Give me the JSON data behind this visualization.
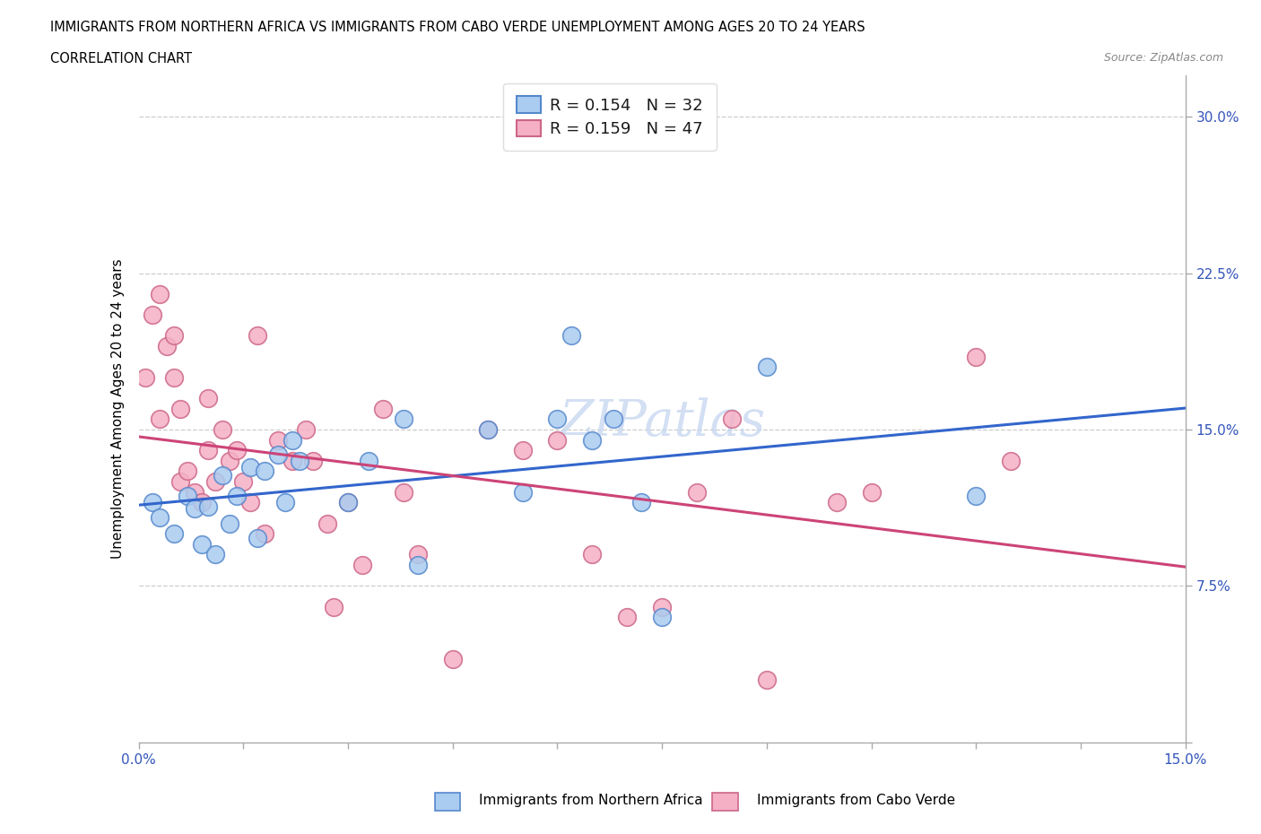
{
  "title_line1": "IMMIGRANTS FROM NORTHERN AFRICA VS IMMIGRANTS FROM CABO VERDE UNEMPLOYMENT AMONG AGES 20 TO 24 YEARS",
  "title_line2": "CORRELATION CHART",
  "source_text": "Source: ZipAtlas.com",
  "ylabel": "Unemployment Among Ages 20 to 24 years",
  "xlim": [
    0.0,
    0.15
  ],
  "ylim": [
    0.0,
    0.32
  ],
  "xticks": [
    0.0,
    0.015,
    0.03,
    0.045,
    0.06,
    0.075,
    0.09,
    0.105,
    0.12,
    0.135,
    0.15
  ],
  "xtick_labels": [
    "0.0%",
    "",
    "",
    "",
    "",
    "",
    "",
    "",
    "",
    "",
    "15.0%"
  ],
  "yticks": [
    0.0,
    0.075,
    0.15,
    0.225,
    0.3
  ],
  "ytick_labels": [
    "",
    "7.5%",
    "15.0%",
    "22.5%",
    "30.0%"
  ],
  "hlines": [
    0.075,
    0.15,
    0.225,
    0.3
  ],
  "color_blue": "#aaccf0",
  "color_pink": "#f5b0c5",
  "edge_blue": "#5588cc",
  "edge_pink": "#cc6688",
  "line_blue": "#3366cc",
  "line_pink": "#cc4477",
  "R_blue": "0.154",
  "N_blue": "32",
  "R_pink": "0.159",
  "N_pink": "47",
  "legend_label_blue": "Immigrants from Northern Africa",
  "legend_label_pink": "Immigrants from Cabo Verde",
  "scatter_blue_x": [
    0.002,
    0.003,
    0.005,
    0.007,
    0.008,
    0.009,
    0.01,
    0.011,
    0.012,
    0.013,
    0.014,
    0.016,
    0.017,
    0.018,
    0.02,
    0.021,
    0.022,
    0.023,
    0.03,
    0.033,
    0.038,
    0.04,
    0.05,
    0.055,
    0.06,
    0.062,
    0.065,
    0.068,
    0.072,
    0.075,
    0.09,
    0.12
  ],
  "scatter_blue_y": [
    0.115,
    0.108,
    0.1,
    0.118,
    0.112,
    0.095,
    0.113,
    0.09,
    0.128,
    0.105,
    0.118,
    0.132,
    0.098,
    0.13,
    0.138,
    0.115,
    0.145,
    0.135,
    0.115,
    0.135,
    0.155,
    0.085,
    0.15,
    0.12,
    0.155,
    0.195,
    0.145,
    0.155,
    0.115,
    0.06,
    0.18,
    0.118
  ],
  "scatter_pink_x": [
    0.001,
    0.002,
    0.003,
    0.003,
    0.004,
    0.005,
    0.005,
    0.006,
    0.006,
    0.007,
    0.008,
    0.009,
    0.01,
    0.01,
    0.011,
    0.012,
    0.013,
    0.014,
    0.015,
    0.016,
    0.017,
    0.018,
    0.02,
    0.022,
    0.024,
    0.025,
    0.027,
    0.028,
    0.03,
    0.032,
    0.035,
    0.038,
    0.04,
    0.045,
    0.05,
    0.055,
    0.06,
    0.065,
    0.07,
    0.075,
    0.08,
    0.085,
    0.09,
    0.1,
    0.105,
    0.12,
    0.125
  ],
  "scatter_pink_y": [
    0.175,
    0.205,
    0.215,
    0.155,
    0.19,
    0.195,
    0.175,
    0.16,
    0.125,
    0.13,
    0.12,
    0.115,
    0.14,
    0.165,
    0.125,
    0.15,
    0.135,
    0.14,
    0.125,
    0.115,
    0.195,
    0.1,
    0.145,
    0.135,
    0.15,
    0.135,
    0.105,
    0.065,
    0.115,
    0.085,
    0.16,
    0.12,
    0.09,
    0.04,
    0.15,
    0.14,
    0.145,
    0.09,
    0.06,
    0.065,
    0.12,
    0.155,
    0.03,
    0.115,
    0.12,
    0.185,
    0.135
  ]
}
